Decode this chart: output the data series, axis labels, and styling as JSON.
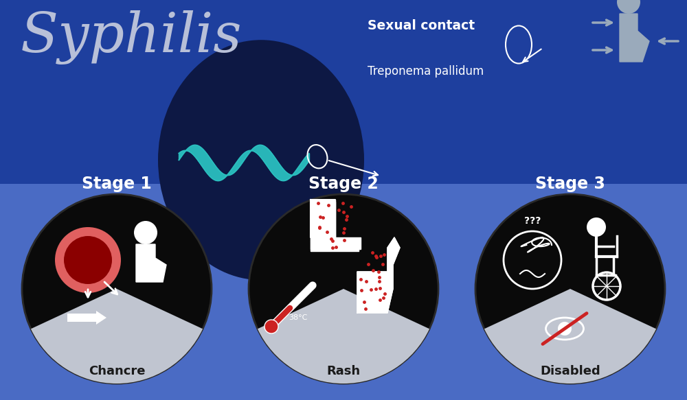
{
  "bg_top": "#1e3f9e",
  "bg_bottom": "#4a6bc4",
  "dark_ellipse": "#0d1844",
  "black_circle": "#0a0a0a",
  "gray_label": "#c0c5d0",
  "white": "#ffffff",
  "teal": "#2abfbf",
  "red_chancre_outer": "#e06060",
  "red_chancre_inner": "#8b0000",
  "red_slash": "#cc2222",
  "person_gray": "#9aaabb",
  "title": "Syphilis",
  "stage1_label": "Stage 1",
  "stage2_label": "Stage 2",
  "stage3_label": "Stage 3",
  "chancre_label": "Chancre",
  "rash_label": "Rash",
  "disabled_label": "Disabled",
  "sexual_contact": "Sexual contact",
  "treponema": "Treponema pallidum",
  "figsize": [
    10.0,
    5.83
  ],
  "dpi": 100
}
